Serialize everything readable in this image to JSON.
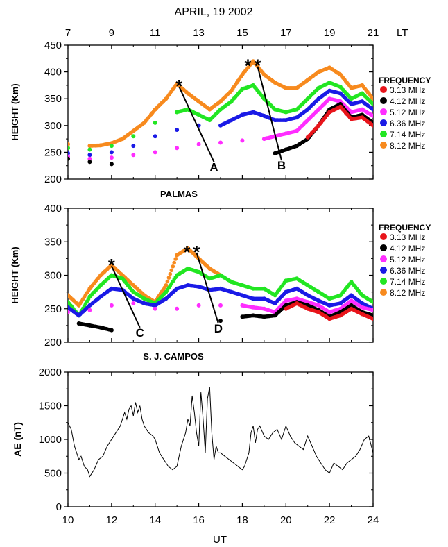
{
  "figure": {
    "title": "APRIL, 19 2002",
    "top_axis_unit": "LT",
    "top_axis_ticks": [
      "7",
      "9",
      "11",
      "13",
      "15",
      "17",
      "19",
      "21"
    ],
    "bottom_axis_ticks": [
      "10",
      "12",
      "14",
      "16",
      "18",
      "20",
      "22",
      "24"
    ],
    "xlabel": "UT",
    "frequency_legend_title": "FREQUENCY",
    "frequencies": [
      {
        "label": "3.13 MHz",
        "color": "#e8141b"
      },
      {
        "label": "4.12 MHz",
        "color": "#000000"
      },
      {
        "label": "5.12 MHz",
        "color": "#ff2dff"
      },
      {
        "label": "6.36 MHz",
        "color": "#1a1ae6"
      },
      {
        "label": "7.14 MHz",
        "color": "#22e622"
      },
      {
        "label": "8.12 MHz",
        "color": "#f78a1e"
      }
    ]
  },
  "chart_data": [
    {
      "type": "scatter",
      "station": "PALMAS",
      "ylabel": "HEIGHT (Km)",
      "ylim": [
        200,
        450
      ],
      "yticks": [
        "200",
        "250",
        "300",
        "350",
        "400",
        "450"
      ],
      "xlim_ut": [
        10,
        24
      ],
      "series": [
        {
          "name": "8.12 MHz",
          "x": [
            10.0,
            11.0,
            11.5,
            12.0,
            12.5,
            13.0,
            13.5,
            14.0,
            14.5,
            15.0,
            15.5,
            16.0,
            16.5,
            17.0,
            17.5,
            18.0,
            18.5,
            19.0,
            19.5,
            20.0,
            20.5,
            21.0,
            21.5,
            22.0,
            22.5,
            23.0,
            23.5,
            24.0
          ],
          "y": [
            265,
            262,
            263,
            267,
            275,
            290,
            305,
            330,
            350,
            378,
            360,
            345,
            330,
            345,
            365,
            395,
            420,
            395,
            380,
            370,
            370,
            385,
            400,
            408,
            395,
            370,
            375,
            350
          ]
        },
        {
          "name": "7.14 MHz",
          "x": [
            10.0,
            11.0,
            12.0,
            13.0,
            14.0,
            15.0,
            15.5,
            16.0,
            16.5,
            17.0,
            17.5,
            18.0,
            18.5,
            19.0,
            19.5,
            20.0,
            20.5,
            21.0,
            21.5,
            22.0,
            22.5,
            23.0,
            23.5,
            24.0
          ],
          "y": [
            258,
            255,
            262,
            280,
            305,
            325,
            330,
            320,
            310,
            330,
            345,
            368,
            375,
            350,
            330,
            325,
            330,
            350,
            370,
            380,
            372,
            350,
            360,
            340
          ]
        },
        {
          "name": "6.36 MHz",
          "x": [
            10.0,
            11.0,
            12.0,
            13.0,
            14.0,
            15.0,
            16.0,
            17.0,
            17.5,
            18.0,
            18.5,
            19.0,
            19.5,
            20.0,
            20.5,
            21.0,
            21.5,
            22.0,
            22.5,
            23.0,
            23.5,
            24.0
          ],
          "y": [
            248,
            245,
            250,
            262,
            280,
            292,
            300,
            300,
            310,
            320,
            325,
            318,
            310,
            310,
            315,
            330,
            350,
            365,
            360,
            340,
            345,
            330
          ]
        },
        {
          "name": "5.12 MHz",
          "x": [
            10.0,
            11.0,
            12.0,
            13.0,
            14.0,
            15.0,
            16.0,
            17.0,
            18.0,
            19.0,
            19.5,
            20.0,
            20.5,
            21.0,
            21.5,
            22.0,
            22.5,
            23.0,
            23.5,
            24.0
          ],
          "y": [
            242,
            238,
            240,
            245,
            250,
            258,
            265,
            268,
            272,
            275,
            280,
            285,
            290,
            310,
            330,
            350,
            345,
            325,
            330,
            318
          ]
        },
        {
          "name": "4.12 MHz",
          "x": [
            10.0,
            11.0,
            12.0,
            19.5,
            20.0,
            20.5,
            21.0,
            21.5,
            22.0,
            22.5,
            23.0,
            23.5,
            24.0
          ],
          "y": [
            238,
            232,
            228,
            248,
            255,
            262,
            275,
            300,
            330,
            340,
            315,
            320,
            305
          ]
        },
        {
          "name": "3.13 MHz",
          "x": [
            21.0,
            21.5,
            22.0,
            22.5,
            23.0,
            23.5,
            24.0
          ],
          "y": [
            278,
            300,
            325,
            335,
            312,
            315,
            300
          ]
        }
      ],
      "annotations": [
        {
          "label": "A",
          "star_x": 15.1,
          "star_y": 380,
          "end_x": 16.7,
          "end_y": 232
        },
        {
          "label": "B",
          "star_x": 18.7,
          "star_y": 418,
          "end_x": 19.8,
          "end_y": 235
        }
      ]
    },
    {
      "type": "scatter",
      "station": "S. J. CAMPOS",
      "ylabel": "HEIGHT (Km)",
      "ylim": [
        200,
        400
      ],
      "yticks": [
        "200",
        "250",
        "300",
        "350",
        "400"
      ],
      "xlim_ut": [
        10,
        24
      ],
      "series": [
        {
          "name": "8.12 MHz",
          "x": [
            10.0,
            10.5,
            11.0,
            11.5,
            12.0,
            12.5,
            13.0,
            13.5,
            14.0,
            14.5,
            15.0,
            15.5,
            16.0,
            16.5,
            17.0
          ],
          "y": [
            270,
            255,
            280,
            300,
            315,
            300,
            285,
            270,
            260,
            285,
            330,
            340,
            325,
            310,
            300
          ]
        },
        {
          "name": "7.14 MHz",
          "x": [
            10.0,
            10.5,
            11.0,
            11.5,
            12.0,
            12.5,
            13.0,
            13.5,
            14.0,
            14.5,
            15.0,
            15.5,
            16.0,
            16.5,
            17.0,
            17.5,
            18.0,
            18.5,
            19.0,
            19.5,
            20.0,
            20.5,
            21.0,
            21.5,
            22.0,
            22.5,
            23.0,
            23.5,
            24.0
          ],
          "y": [
            260,
            240,
            268,
            285,
            300,
            295,
            275,
            265,
            258,
            275,
            300,
            310,
            305,
            295,
            300,
            290,
            285,
            280,
            280,
            270,
            292,
            295,
            285,
            275,
            265,
            270,
            290,
            270,
            260
          ]
        },
        {
          "name": "6.36 MHz",
          "x": [
            10.0,
            10.5,
            11.0,
            11.5,
            12.0,
            12.5,
            13.0,
            13.5,
            14.0,
            14.5,
            15.0,
            15.5,
            16.0,
            16.5,
            17.0,
            17.5,
            18.0,
            18.5,
            19.0,
            19.5,
            20.0,
            20.5,
            21.0,
            21.5,
            22.0,
            22.5,
            23.0,
            23.5,
            24.0
          ],
          "y": [
            252,
            240,
            255,
            268,
            280,
            278,
            265,
            258,
            255,
            265,
            280,
            285,
            283,
            278,
            280,
            275,
            270,
            265,
            265,
            258,
            275,
            280,
            270,
            262,
            255,
            258,
            270,
            258,
            250
          ]
        },
        {
          "name": "5.12 MHz",
          "x": [
            10.0,
            11.0,
            12.0,
            13.0,
            14.0,
            15.0,
            16.0,
            17.0,
            18.0,
            18.5,
            19.0,
            19.5,
            20.0,
            20.5,
            21.0,
            21.5,
            22.0,
            22.5,
            23.0,
            23.5,
            24.0
          ],
          "y": [
            245,
            248,
            255,
            258,
            250,
            250,
            255,
            255,
            255,
            252,
            250,
            245,
            262,
            265,
            260,
            255,
            245,
            250,
            262,
            252,
            248
          ]
        },
        {
          "name": "4.12 MHz",
          "x": [
            10.5,
            11.0,
            11.5,
            12.0,
            17.0,
            18.0,
            18.5,
            19.0,
            19.5,
            20.0,
            20.5,
            21.0,
            21.5,
            22.0,
            22.5,
            23.0,
            23.5,
            24.0
          ],
          "y": [
            228,
            225,
            222,
            218,
            232,
            238,
            240,
            238,
            240,
            255,
            260,
            255,
            248,
            238,
            245,
            255,
            245,
            240
          ]
        },
        {
          "name": "3.13 MHz",
          "x": [
            20.0,
            20.5,
            21.0,
            21.5,
            22.0,
            22.5,
            23.0,
            23.5,
            24.0
          ],
          "y": [
            250,
            258,
            250,
            245,
            235,
            240,
            250,
            242,
            235
          ]
        }
      ],
      "annotations": [
        {
          "label": "C",
          "star_x": 12.0,
          "star_y": 320,
          "end_x": 13.3,
          "end_y": 222
        },
        {
          "label": "D",
          "star_x": 15.9,
          "star_y": 340,
          "end_x": 16.9,
          "end_y": 228
        }
      ]
    },
    {
      "type": "line",
      "ylabel": "AE (nT)",
      "ylim": [
        0,
        2000
      ],
      "yticks": [
        "0",
        "500",
        "1000",
        "1500",
        "2000"
      ],
      "xlim_ut": [
        10,
        24
      ],
      "series": [
        {
          "name": "AE",
          "x": [
            10.0,
            10.15,
            10.3,
            10.5,
            10.6,
            10.75,
            10.9,
            11.0,
            11.2,
            11.4,
            11.6,
            11.8,
            12.0,
            12.2,
            12.4,
            12.6,
            12.7,
            12.8,
            12.9,
            13.0,
            13.1,
            13.2,
            13.3,
            13.4,
            13.5,
            13.7,
            13.9,
            14.0,
            14.2,
            14.4,
            14.6,
            14.8,
            15.0,
            15.2,
            15.4,
            15.5,
            15.6,
            15.7,
            15.8,
            15.9,
            16.0,
            16.1,
            16.2,
            16.3,
            16.4,
            16.5,
            16.6,
            16.7,
            16.8,
            16.9,
            17.0,
            17.2,
            17.4,
            17.6,
            17.8,
            18.0,
            18.1,
            18.2,
            18.3,
            18.4,
            18.5,
            18.6,
            18.7,
            18.8,
            19.0,
            19.2,
            19.4,
            19.6,
            19.8,
            20.0,
            20.2,
            20.4,
            20.6,
            20.8,
            21.0,
            21.2,
            21.4,
            21.6,
            21.8,
            22.0,
            22.2,
            22.4,
            22.6,
            22.8,
            23.0,
            23.2,
            23.4,
            23.6,
            23.8,
            24.0
          ],
          "y": [
            1250,
            1150,
            900,
            700,
            750,
            600,
            550,
            450,
            550,
            700,
            750,
            900,
            1000,
            1100,
            1200,
            1400,
            1300,
            1450,
            1500,
            1350,
            1550,
            1400,
            1500,
            1300,
            1200,
            1100,
            1050,
            1000,
            800,
            700,
            600,
            550,
            600,
            900,
            1100,
            1300,
            1200,
            1650,
            1400,
            1100,
            900,
            1700,
            1300,
            800,
            1600,
            1780,
            1100,
            700,
            900,
            800,
            800,
            750,
            700,
            650,
            600,
            550,
            600,
            700,
            800,
            1100,
            1200,
            950,
            1150,
            1200,
            1050,
            1000,
            1100,
            1150,
            1000,
            1200,
            1050,
            950,
            900,
            850,
            1050,
            900,
            750,
            650,
            550,
            500,
            650,
            600,
            550,
            650,
            700,
            750,
            850,
            1000,
            1050,
            800
          ]
        }
      ]
    }
  ]
}
